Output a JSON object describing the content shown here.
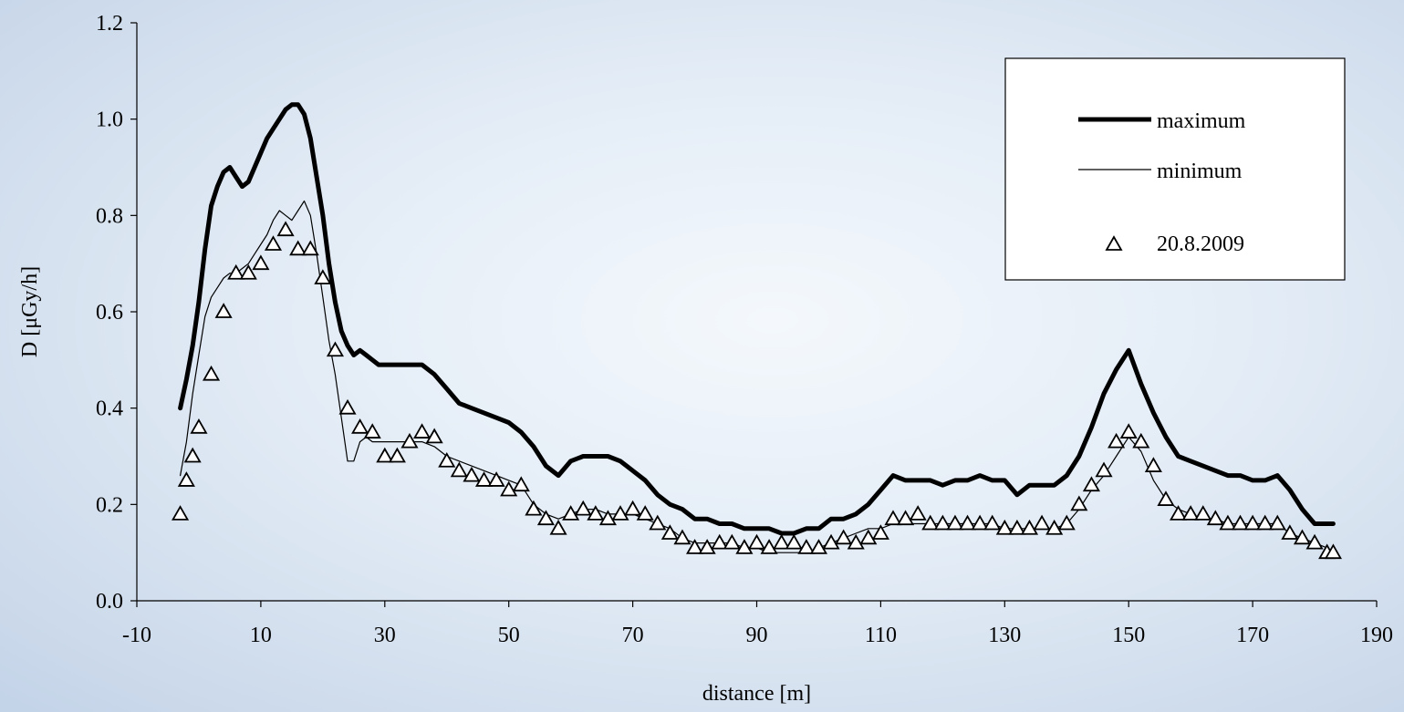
{
  "chart_data": {
    "type": "line",
    "title": "",
    "xlabel": "distance [m]",
    "ylabel": "D [μGy/h]",
    "xlim": [
      -10,
      190
    ],
    "ylim": [
      0,
      1.2
    ],
    "xticks": [
      -10,
      10,
      30,
      50,
      70,
      90,
      110,
      130,
      150,
      170,
      190
    ],
    "yticks": [
      "0.0",
      "0.2",
      "0.4",
      "0.6",
      "0.8",
      "1.0",
      "1.2"
    ],
    "grid": false,
    "legend_position": "top-right",
    "series": [
      {
        "name": "maximum",
        "style": "thick-line",
        "color": "#000000",
        "x": [
          -3,
          -2,
          -1,
          0,
          1,
          2,
          3,
          4,
          5,
          6,
          7,
          8,
          9,
          10,
          11,
          12,
          13,
          14,
          15,
          16,
          17,
          18,
          19,
          20,
          21,
          22,
          23,
          24,
          25,
          26,
          27,
          28,
          29,
          30,
          32,
          34,
          36,
          38,
          40,
          42,
          44,
          46,
          48,
          50,
          52,
          54,
          56,
          58,
          60,
          62,
          64,
          66,
          68,
          70,
          72,
          74,
          76,
          78,
          80,
          82,
          84,
          86,
          88,
          90,
          92,
          94,
          96,
          98,
          100,
          102,
          104,
          106,
          108,
          110,
          112,
          114,
          116,
          118,
          120,
          122,
          124,
          126,
          128,
          130,
          132,
          134,
          136,
          138,
          140,
          142,
          144,
          146,
          148,
          150,
          152,
          154,
          156,
          158,
          160,
          162,
          164,
          166,
          168,
          170,
          172,
          174,
          176,
          178,
          180,
          182,
          183
        ],
        "y": [
          0.4,
          0.46,
          0.53,
          0.62,
          0.73,
          0.82,
          0.86,
          0.89,
          0.9,
          0.88,
          0.86,
          0.87,
          0.9,
          0.93,
          0.96,
          0.98,
          1.0,
          1.02,
          1.03,
          1.03,
          1.01,
          0.96,
          0.88,
          0.8,
          0.7,
          0.62,
          0.56,
          0.53,
          0.51,
          0.52,
          0.51,
          0.5,
          0.49,
          0.49,
          0.49,
          0.49,
          0.49,
          0.47,
          0.44,
          0.41,
          0.4,
          0.39,
          0.38,
          0.37,
          0.35,
          0.32,
          0.28,
          0.26,
          0.29,
          0.3,
          0.3,
          0.3,
          0.29,
          0.27,
          0.25,
          0.22,
          0.2,
          0.19,
          0.17,
          0.17,
          0.16,
          0.16,
          0.15,
          0.15,
          0.15,
          0.14,
          0.14,
          0.15,
          0.15,
          0.17,
          0.17,
          0.18,
          0.2,
          0.23,
          0.26,
          0.25,
          0.25,
          0.25,
          0.24,
          0.25,
          0.25,
          0.26,
          0.25,
          0.25,
          0.22,
          0.24,
          0.24,
          0.24,
          0.26,
          0.3,
          0.36,
          0.43,
          0.48,
          0.52,
          0.45,
          0.39,
          0.34,
          0.3,
          0.29,
          0.28,
          0.27,
          0.26,
          0.26,
          0.25,
          0.25,
          0.26,
          0.23,
          0.19,
          0.16,
          0.16,
          0.16
        ]
      },
      {
        "name": "minimum",
        "style": "thin-line",
        "color": "#000000",
        "x": [
          -3,
          -2,
          -1,
          0,
          1,
          2,
          3,
          4,
          5,
          6,
          7,
          8,
          9,
          10,
          11,
          12,
          13,
          14,
          15,
          16,
          17,
          18,
          19,
          20,
          21,
          22,
          23,
          24,
          25,
          26,
          27,
          28,
          29,
          30,
          32,
          34,
          36,
          38,
          40,
          42,
          44,
          46,
          48,
          50,
          52,
          54,
          56,
          58,
          60,
          62,
          64,
          66,
          68,
          70,
          72,
          74,
          76,
          78,
          80,
          82,
          84,
          86,
          88,
          90,
          92,
          94,
          96,
          98,
          100,
          102,
          104,
          106,
          108,
          110,
          112,
          114,
          116,
          118,
          120,
          122,
          124,
          126,
          128,
          130,
          132,
          134,
          136,
          138,
          140,
          142,
          144,
          146,
          148,
          150,
          152,
          154,
          156,
          158,
          160,
          162,
          164,
          166,
          168,
          170,
          172,
          174,
          176,
          178,
          180,
          182,
          183
        ],
        "y": [
          0.26,
          0.33,
          0.43,
          0.51,
          0.59,
          0.63,
          0.65,
          0.67,
          0.68,
          0.68,
          0.69,
          0.7,
          0.72,
          0.74,
          0.76,
          0.79,
          0.81,
          0.8,
          0.79,
          0.81,
          0.83,
          0.8,
          0.72,
          0.63,
          0.54,
          0.47,
          0.38,
          0.29,
          0.29,
          0.33,
          0.34,
          0.33,
          0.33,
          0.33,
          0.33,
          0.33,
          0.33,
          0.32,
          0.3,
          0.29,
          0.28,
          0.27,
          0.26,
          0.25,
          0.24,
          0.2,
          0.18,
          0.17,
          0.18,
          0.19,
          0.19,
          0.18,
          0.18,
          0.18,
          0.17,
          0.16,
          0.15,
          0.13,
          0.12,
          0.12,
          0.12,
          0.12,
          0.11,
          0.11,
          0.1,
          0.1,
          0.1,
          0.1,
          0.11,
          0.12,
          0.13,
          0.14,
          0.15,
          0.15,
          0.16,
          0.16,
          0.16,
          0.16,
          0.16,
          0.16,
          0.16,
          0.16,
          0.16,
          0.15,
          0.15,
          0.15,
          0.15,
          0.15,
          0.16,
          0.19,
          0.23,
          0.26,
          0.3,
          0.34,
          0.31,
          0.25,
          0.21,
          0.19,
          0.18,
          0.17,
          0.17,
          0.16,
          0.16,
          0.16,
          0.16,
          0.16,
          0.14,
          0.13,
          0.12,
          0.11,
          0.1
        ]
      },
      {
        "name": "20.8.2009",
        "style": "triangle-markers",
        "color": "#000000",
        "x": [
          -3,
          -2,
          -1,
          0,
          2,
          4,
          6,
          8,
          10,
          12,
          14,
          16,
          18,
          20,
          22,
          24,
          26,
          28,
          30,
          32,
          34,
          36,
          38,
          40,
          42,
          44,
          46,
          48,
          50,
          52,
          54,
          56,
          58,
          60,
          62,
          64,
          66,
          68,
          70,
          72,
          74,
          76,
          78,
          80,
          82,
          84,
          86,
          88,
          90,
          92,
          94,
          96,
          98,
          100,
          102,
          104,
          106,
          108,
          110,
          112,
          114,
          116,
          118,
          120,
          122,
          124,
          126,
          128,
          130,
          132,
          134,
          136,
          138,
          140,
          142,
          144,
          146,
          148,
          150,
          152,
          154,
          156,
          158,
          160,
          162,
          164,
          166,
          168,
          170,
          172,
          174,
          176,
          178,
          180,
          182,
          183
        ],
        "y": [
          0.18,
          0.25,
          0.3,
          0.36,
          0.47,
          0.6,
          0.68,
          0.68,
          0.7,
          0.74,
          0.77,
          0.73,
          0.73,
          0.67,
          0.52,
          0.4,
          0.36,
          0.35,
          0.3,
          0.3,
          0.33,
          0.35,
          0.34,
          0.29,
          0.27,
          0.26,
          0.25,
          0.25,
          0.23,
          0.24,
          0.19,
          0.17,
          0.15,
          0.18,
          0.19,
          0.18,
          0.17,
          0.18,
          0.19,
          0.18,
          0.16,
          0.14,
          0.13,
          0.11,
          0.11,
          0.12,
          0.12,
          0.11,
          0.12,
          0.11,
          0.12,
          0.12,
          0.11,
          0.11,
          0.12,
          0.13,
          0.12,
          0.13,
          0.14,
          0.17,
          0.17,
          0.18,
          0.16,
          0.16,
          0.16,
          0.16,
          0.16,
          0.16,
          0.15,
          0.15,
          0.15,
          0.16,
          0.15,
          0.16,
          0.2,
          0.24,
          0.27,
          0.33,
          0.35,
          0.33,
          0.28,
          0.21,
          0.18,
          0.18,
          0.18,
          0.17,
          0.16,
          0.16,
          0.16,
          0.16,
          0.16,
          0.14,
          0.13,
          0.12,
          0.1,
          0.1
        ]
      }
    ]
  }
}
